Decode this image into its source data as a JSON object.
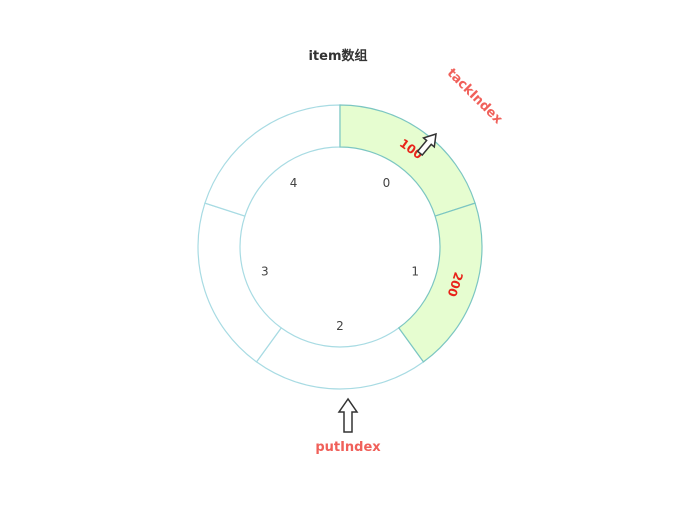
{
  "title": "item数组",
  "segments": [
    {
      "index": "0",
      "value": "100",
      "filled": true
    },
    {
      "index": "1",
      "value": "200",
      "filled": true
    },
    {
      "index": "2",
      "value": "",
      "filled": false
    },
    {
      "index": "3",
      "value": "",
      "filled": false
    },
    {
      "index": "4",
      "value": "",
      "filled": false
    }
  ],
  "pointers": {
    "take": {
      "label": "tackIndex"
    },
    "put": {
      "label": "putIndex"
    }
  },
  "colors": {
    "filled_fill": "#e6fdd0",
    "filled_stroke": "#7cc6c2",
    "empty_stroke": "#a8dbe3",
    "value_text": "#e8231a",
    "pointer_label": "#f0605a"
  }
}
